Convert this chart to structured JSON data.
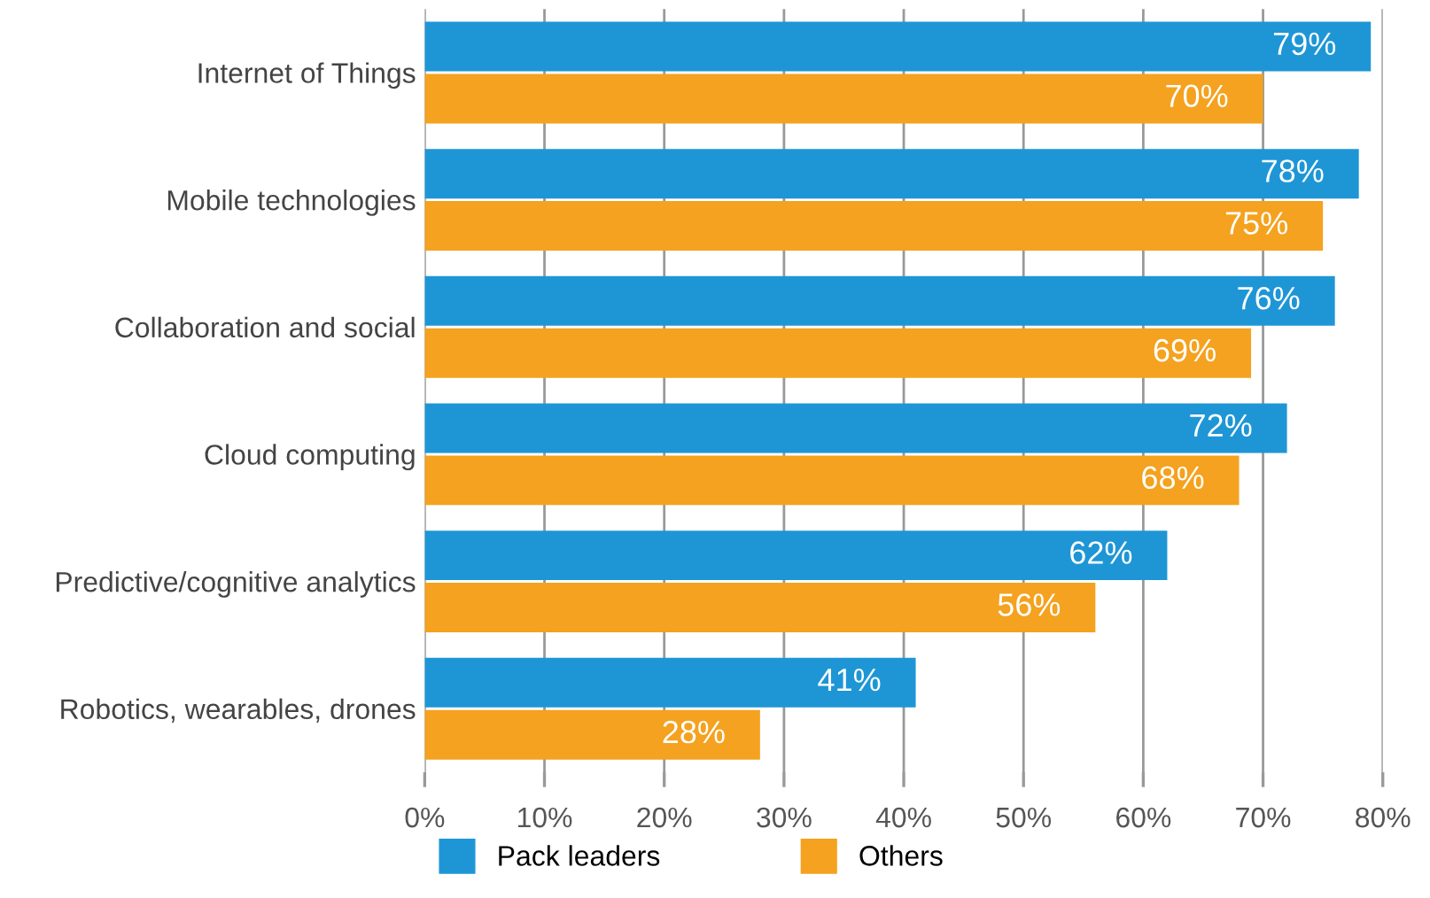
{
  "chart_data": {
    "type": "bar",
    "orientation": "horizontal",
    "categories": [
      "Internet of Things",
      "Mobile technologies",
      "Collaboration and social",
      "Cloud computing",
      "Predictive/cognitive analytics",
      "Robotics, wearables, drones"
    ],
    "series": [
      {
        "name": "Pack leaders",
        "color": "#1e96d6",
        "values": [
          79,
          78,
          76,
          72,
          62,
          41
        ],
        "value_labels": [
          "79%",
          "78%",
          "76%",
          "72%",
          "62%",
          "41%"
        ]
      },
      {
        "name": "Others",
        "color": "#f4a21f",
        "values": [
          70,
          75,
          69,
          68,
          56,
          28
        ],
        "value_labels": [
          "70%",
          "75%",
          "69%",
          "68%",
          "56%",
          "28%"
        ]
      }
    ],
    "xlim": [
      0,
      80
    ],
    "xticks": [
      {
        "value": 0,
        "label": "0%"
      },
      {
        "value": 10,
        "label": "10%"
      },
      {
        "value": 20,
        "label": "20%"
      },
      {
        "value": 30,
        "label": "30%"
      },
      {
        "value": 40,
        "label": "40%"
      },
      {
        "value": 50,
        "label": "50%"
      },
      {
        "value": 60,
        "label": "60%"
      },
      {
        "value": 70,
        "label": "70%"
      },
      {
        "value": 80,
        "label": "80%"
      }
    ],
    "grid": "x",
    "legend": "bottom left"
  }
}
